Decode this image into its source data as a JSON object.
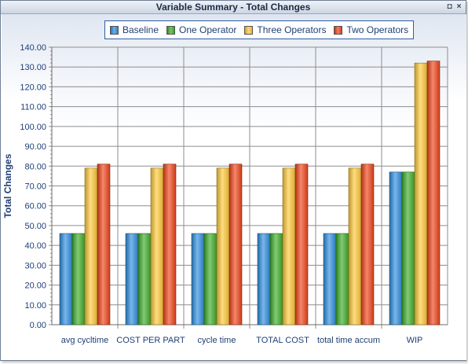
{
  "window": {
    "title": "Variable Summary - Total Changes",
    "restore_glyph": "◘",
    "close_glyph": "×"
  },
  "chart_data": {
    "type": "bar",
    "ylabel": "Total Changes",
    "xlabel": "",
    "ylim": [
      0,
      140
    ],
    "ytick_step": 10,
    "grid": true,
    "legend_position": "top-center",
    "categories": [
      "avg cycltime",
      "COST PER PART",
      "cycle time",
      "TOTAL COST",
      "total time accum",
      "WIP"
    ],
    "series": [
      {
        "name": "Baseline",
        "color": "#2f8fe0",
        "values": [
          46,
          46,
          46,
          46,
          46,
          77
        ]
      },
      {
        "name": "One Operator",
        "color": "#3fae2a",
        "values": [
          46,
          46,
          46,
          46,
          46,
          77
        ]
      },
      {
        "name": "Three Operators",
        "color": "#ffc93a",
        "values": [
          79,
          79,
          79,
          79,
          79,
          132
        ]
      },
      {
        "name": "Two Operators",
        "color": "#f0451b",
        "values": [
          81,
          81,
          81,
          81,
          81,
          133
        ]
      }
    ]
  }
}
